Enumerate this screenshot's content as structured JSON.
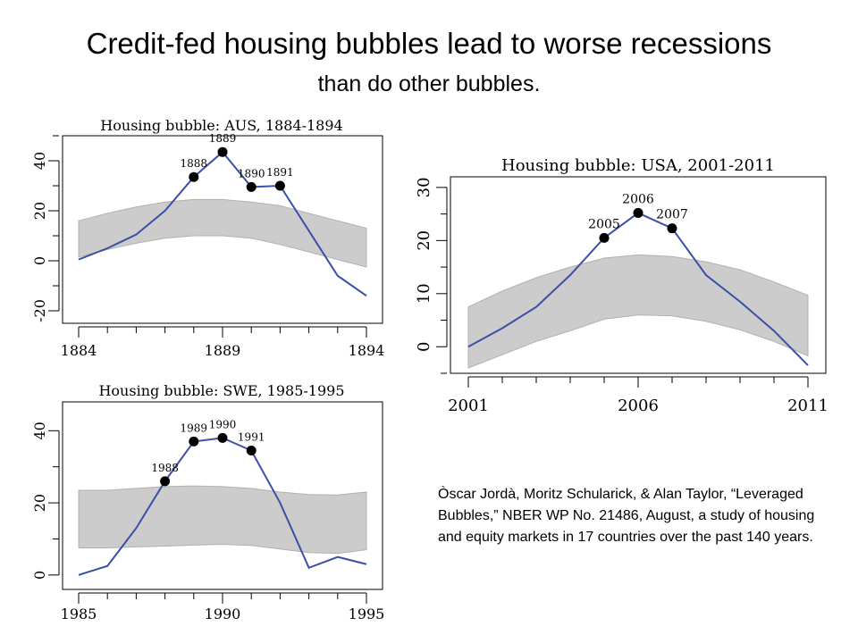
{
  "header": {
    "title": "Credit-fed housing bubbles lead to worse recessions",
    "subtitle": "than do other bubbles."
  },
  "citation": {
    "text": "Òscar Jordà, Moritz Schularick, & Alan Taylor, “Leveraged Bubbles,” NBER WP No. 21486, August, a study of housing and equity markets in 17 countries over the past 140 years."
  },
  "colors": {
    "line": "#3a4fa6",
    "band": "#cccccc",
    "band_edge": "#b0b0b0",
    "marker": "#000000"
  },
  "chart_data": [
    {
      "type": "line",
      "title": "Housing bubble: AUS, 1884-1894",
      "xlabel": "",
      "ylabel": "",
      "xlim": [
        1884,
        1894
      ],
      "ylim": [
        -25,
        50
      ],
      "xticks": [
        1884,
        1889,
        1894
      ],
      "yticks": [
        -20,
        0,
        20,
        40
      ],
      "x": [
        1884,
        1885,
        1886,
        1887,
        1888,
        1889,
        1890,
        1891,
        1892,
        1893,
        1894
      ],
      "series": [
        {
          "values": [
            0.5,
            5,
            10.5,
            20,
            33.5,
            43.5,
            29.5,
            30,
            12,
            -6,
            -14
          ]
        }
      ],
      "band": {
        "upper": [
          16,
          19,
          21.5,
          23.5,
          24.5,
          24.5,
          23.5,
          22,
          19,
          16,
          13
        ],
        "lower": [
          1.5,
          4.5,
          7,
          9,
          10,
          10,
          9,
          6.5,
          3.5,
          0.5,
          -2.5
        ]
      },
      "markers": [
        {
          "x": 1888,
          "y": 33.5,
          "label": "1888"
        },
        {
          "x": 1889,
          "y": 43.5,
          "label": "1889"
        },
        {
          "x": 1890,
          "y": 29.5,
          "label": "1890"
        },
        {
          "x": 1891,
          "y": 30,
          "label": "1891"
        }
      ]
    },
    {
      "type": "line",
      "title": "Housing bubble: USA, 2001-2011",
      "xlabel": "",
      "ylabel": "",
      "xlim": [
        2001,
        2011
      ],
      "ylim": [
        -5,
        32
      ],
      "xticks": [
        2001,
        2006,
        2011
      ],
      "yticks": [
        0,
        10,
        20,
        30
      ],
      "x": [
        2001,
        2002,
        2003,
        2004,
        2005,
        2006,
        2007,
        2008,
        2009,
        2010,
        2011
      ],
      "series": [
        {
          "values": [
            0,
            3.5,
            7.5,
            13.5,
            20.5,
            25.2,
            22.3,
            13.5,
            8.5,
            3,
            -3.5
          ]
        }
      ],
      "band": {
        "upper": [
          7.5,
          10.5,
          13,
          15,
          16.7,
          17.3,
          17,
          16,
          14.5,
          12.2,
          9.7
        ],
        "lower": [
          -4,
          -1.5,
          1,
          3,
          5.2,
          6,
          5.8,
          4.8,
          3.2,
          1,
          -1.7
        ]
      },
      "markers": [
        {
          "x": 2005,
          "y": 20.5,
          "label": "2005"
        },
        {
          "x": 2006,
          "y": 25.2,
          "label": "2006"
        },
        {
          "x": 2007,
          "y": 22.3,
          "label": "2007"
        }
      ]
    },
    {
      "type": "line",
      "title": "Housing bubble: SWE, 1985-1995",
      "xlabel": "",
      "ylabel": "",
      "xlim": [
        1985,
        1995
      ],
      "ylim": [
        -4,
        48
      ],
      "xticks": [
        1985,
        1990,
        1995
      ],
      "yticks": [
        0,
        20,
        40
      ],
      "x": [
        1985,
        1986,
        1987,
        1988,
        1989,
        1990,
        1991,
        1992,
        1993,
        1994,
        1995
      ],
      "series": [
        {
          "values": [
            0,
            2.5,
            13,
            26,
            37,
            38,
            34.5,
            20,
            2,
            5,
            3
          ]
        }
      ],
      "band": {
        "upper": [
          23.5,
          23.5,
          24,
          24.5,
          24.7,
          24.5,
          24,
          23,
          22.3,
          22.2,
          23
        ],
        "lower": [
          7.5,
          7.5,
          7.8,
          8,
          8.3,
          8.5,
          8.2,
          7.2,
          6.2,
          6,
          7
        ]
      },
      "markers": [
        {
          "x": 1988,
          "y": 26,
          "label": "1988"
        },
        {
          "x": 1989,
          "y": 37,
          "label": "1989"
        },
        {
          "x": 1990,
          "y": 38,
          "label": "1990"
        },
        {
          "x": 1991,
          "y": 34.5,
          "label": "1991"
        }
      ]
    }
  ]
}
